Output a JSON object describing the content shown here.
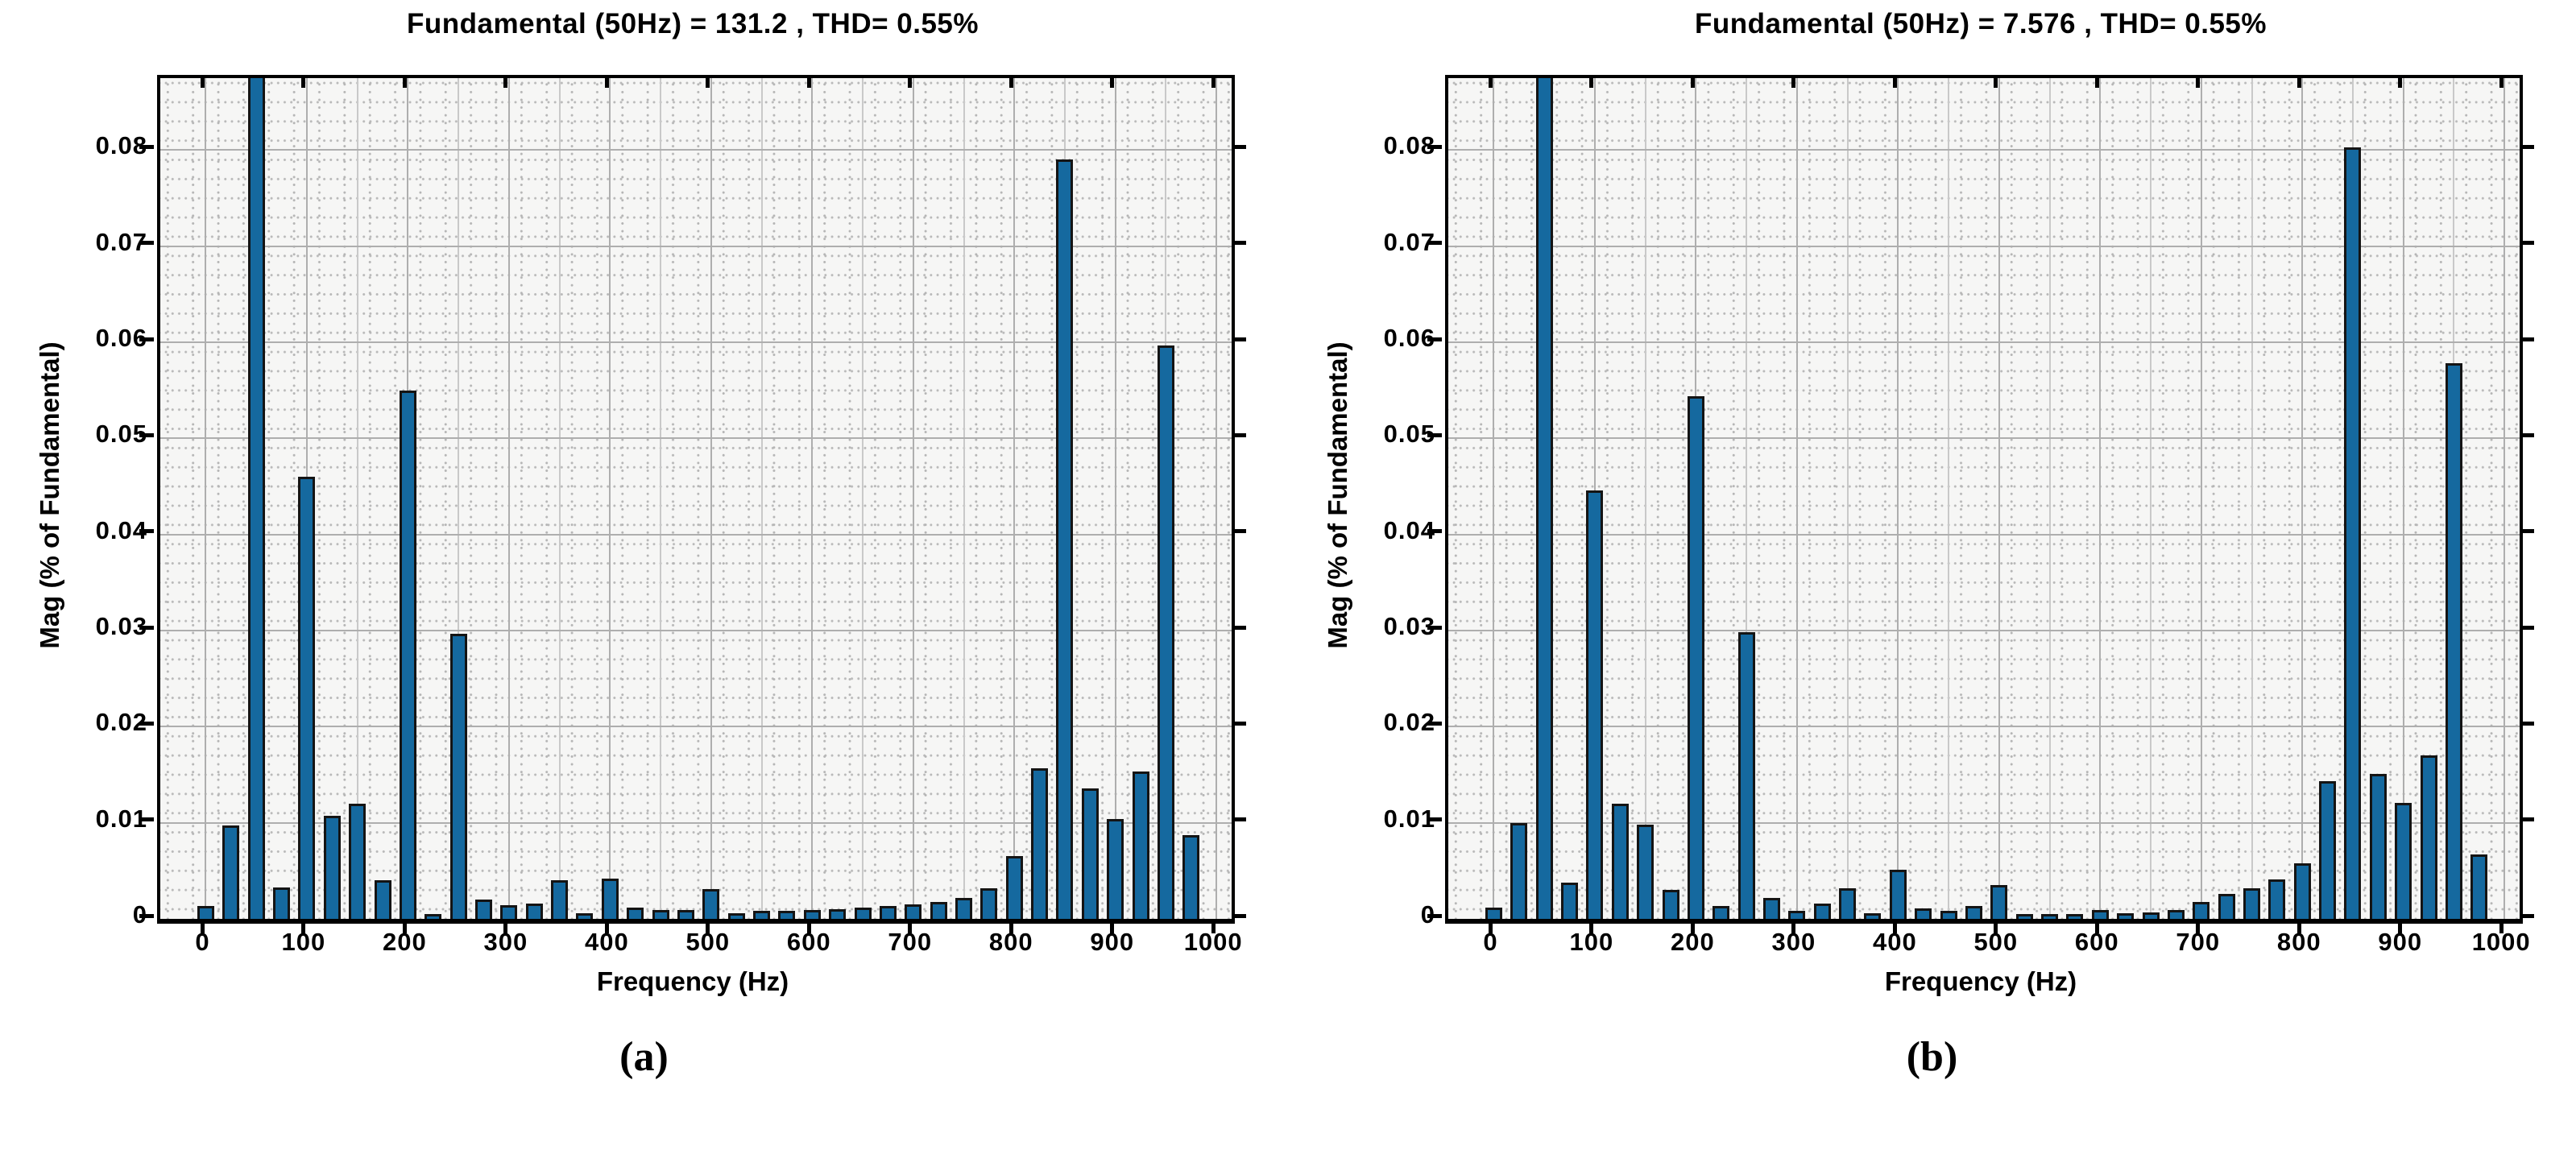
{
  "figure": {
    "panels": [
      {
        "caption": "(a)"
      },
      {
        "caption": "(b)"
      }
    ]
  },
  "chart_data": [
    {
      "type": "bar",
      "title": "Fundamental (50Hz) = 131.2 , THD= 0.55%",
      "xlabel": "Frequency (Hz)",
      "ylabel": "Mag (% of Fundamental)",
      "fundamental_hz": 50,
      "fundamental_magnitude": 131.2,
      "thd_percent": 0.55,
      "xlim": [
        -45,
        1015
      ],
      "ylim": [
        0,
        0.0875
      ],
      "xticks": [
        0,
        100,
        200,
        300,
        400,
        500,
        600,
        700,
        800,
        900,
        1000
      ],
      "yticks": [
        0,
        0.01,
        0.02,
        0.03,
        0.04,
        0.05,
        0.06,
        0.07,
        0.08
      ],
      "grid": "on",
      "bar_color": "#15699f",
      "bar_edge_color": "#141414",
      "note": "50 Hz fundamental bar (100%) is clipped at top of axis",
      "x": [
        0,
        25,
        50,
        75,
        100,
        125,
        150,
        175,
        200,
        225,
        250,
        275,
        300,
        325,
        350,
        375,
        400,
        425,
        450,
        475,
        500,
        525,
        550,
        575,
        600,
        625,
        650,
        675,
        700,
        725,
        750,
        775,
        800,
        825,
        850,
        875,
        900,
        925,
        950,
        975
      ],
      "values": [
        0.0013,
        0.0097,
        100,
        0.0033,
        0.046,
        0.0107,
        0.012,
        0.004,
        0.055,
        0.0005,
        0.0297,
        0.002,
        0.0014,
        0.0016,
        0.004,
        0.0006,
        0.0042,
        0.0012,
        0.0009,
        0.0009,
        0.0031,
        0.0006,
        0.0008,
        0.0008,
        0.0009,
        0.001,
        0.0012,
        0.0013,
        0.0015,
        0.0018,
        0.0022,
        0.0032,
        0.0065,
        0.0157,
        0.079,
        0.0136,
        0.0104,
        0.0153,
        0.0597,
        0.0087
      ]
    },
    {
      "type": "bar",
      "title": "Fundamental (50Hz) = 7.576 , THD= 0.55%",
      "xlabel": "Frequency (Hz)",
      "ylabel": "Mag (% of Fundamental)",
      "fundamental_hz": 50,
      "fundamental_magnitude": 7.576,
      "thd_percent": 0.55,
      "xlim": [
        -45,
        1015
      ],
      "ylim": [
        0,
        0.0875
      ],
      "xticks": [
        0,
        100,
        200,
        300,
        400,
        500,
        600,
        700,
        800,
        900,
        1000
      ],
      "yticks": [
        0,
        0.01,
        0.02,
        0.03,
        0.04,
        0.05,
        0.06,
        0.07,
        0.08
      ],
      "grid": "on",
      "bar_color": "#15699f",
      "bar_edge_color": "#141414",
      "note": "50 Hz fundamental bar (100%) is clipped at top of axis",
      "x": [
        0,
        25,
        50,
        75,
        100,
        125,
        150,
        175,
        200,
        225,
        250,
        275,
        300,
        325,
        350,
        375,
        400,
        425,
        450,
        475,
        500,
        525,
        550,
        575,
        600,
        625,
        650,
        675,
        700,
        725,
        750,
        775,
        800,
        825,
        850,
        875,
        900,
        925,
        950,
        975
      ],
      "values": [
        0.0012,
        0.01,
        100,
        0.0038,
        0.0446,
        0.012,
        0.0098,
        0.003,
        0.0544,
        0.0013,
        0.0298,
        0.0022,
        0.0008,
        0.0016,
        0.0032,
        0.0006,
        0.0051,
        0.0011,
        0.0008,
        0.0013,
        0.0035,
        0.0005,
        0.0005,
        0.0005,
        0.0009,
        0.0006,
        0.0007,
        0.0009,
        0.0018,
        0.0026,
        0.0032,
        0.0041,
        0.0058,
        0.0143,
        0.0803,
        0.0151,
        0.0121,
        0.017,
        0.0578,
        0.0067
      ]
    }
  ]
}
